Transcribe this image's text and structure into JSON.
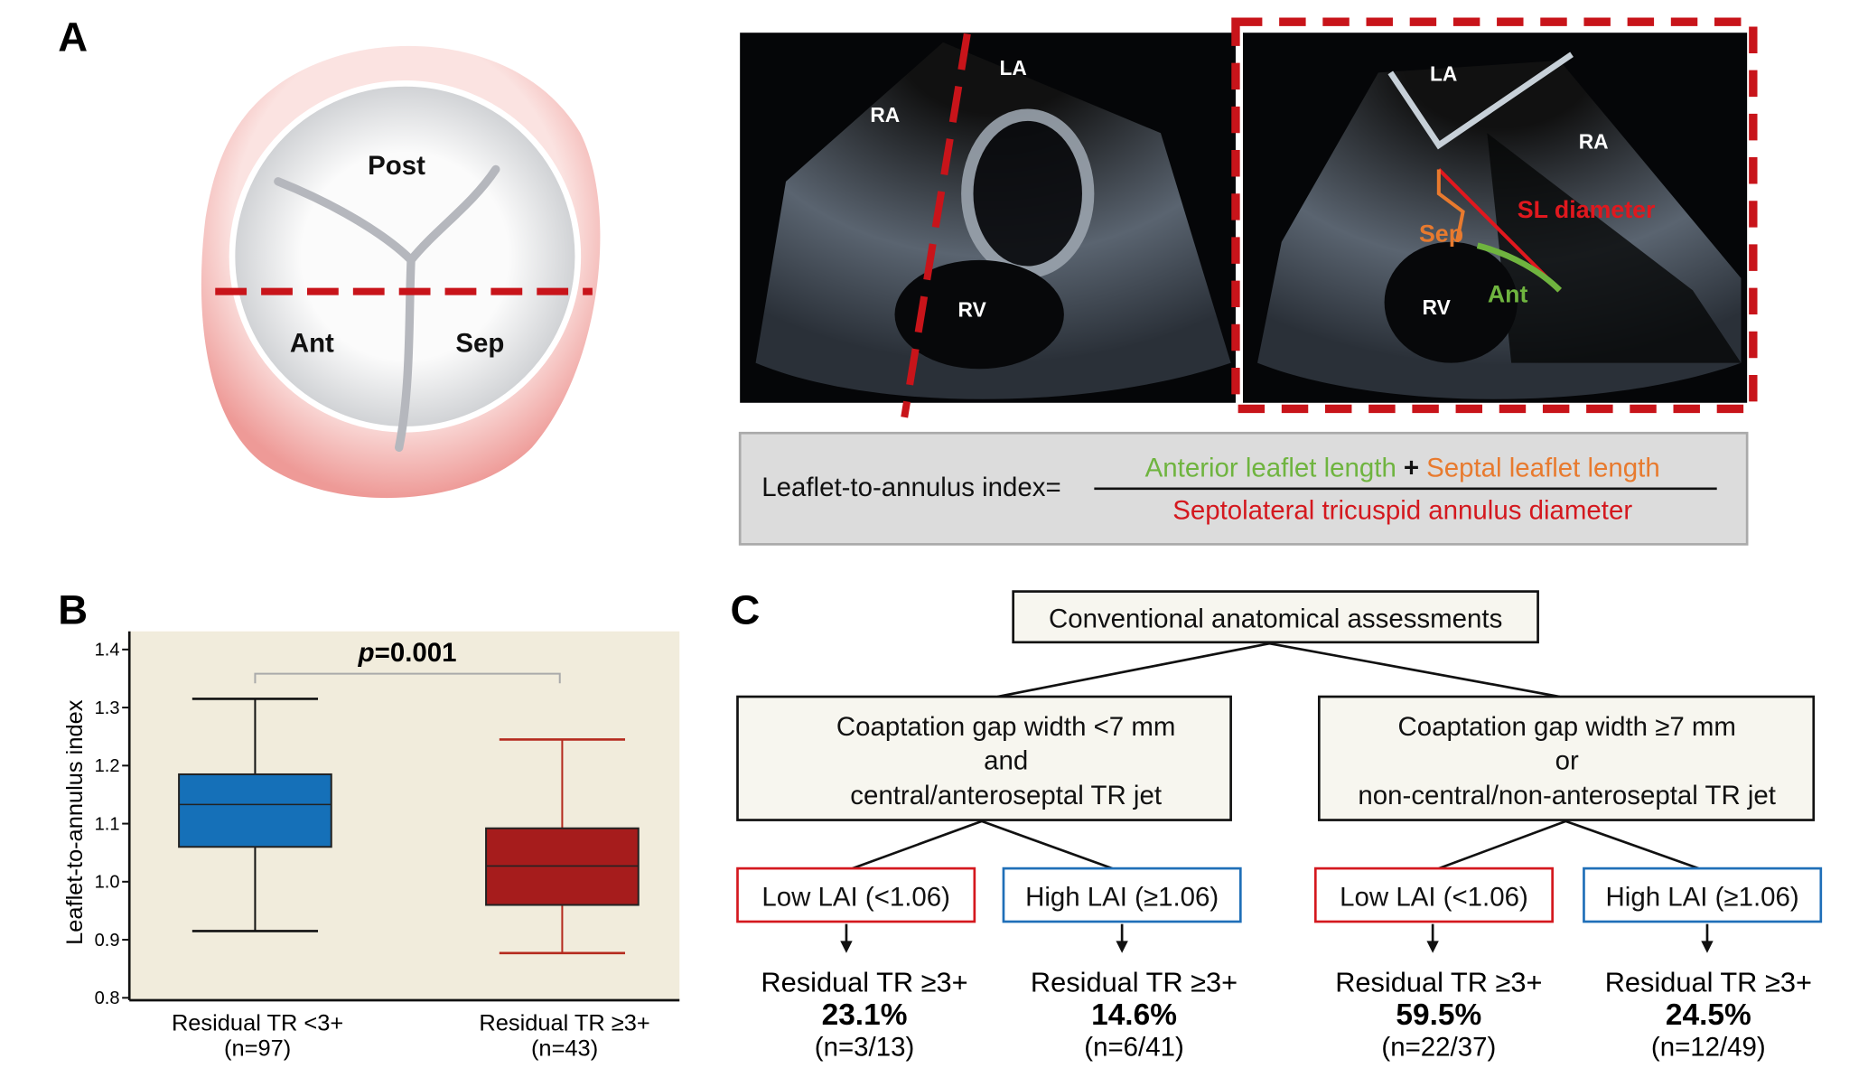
{
  "panel_labels": {
    "a": "A",
    "b": "B",
    "c": "C"
  },
  "valve": {
    "post": "Post",
    "ant": "Ant",
    "sep": "Sep"
  },
  "echo": {
    "left": {
      "la": "LA",
      "ra": "RA",
      "rv": "RV"
    },
    "right": {
      "la": "LA",
      "ra": "RA",
      "rv": "RV",
      "sl": "SL diameter",
      "sep": "Sep",
      "ant": "Ant"
    }
  },
  "formula": {
    "lhs": "Leaflet-to-annulus index=",
    "num_a": "Anterior leaflet length",
    "plus": "+",
    "num_b": "Septal leaflet length",
    "den": "Septolateral tricuspid annulus diameter"
  },
  "colors": {
    "green": "#6fb43f",
    "orange": "#e87a2e",
    "red": "#d4181e",
    "blue": "#1f6fb8",
    "box_blue": "#1570b8",
    "box_red": "#a61c1c",
    "plot_bg": "#f1ecdc"
  },
  "chart_data": {
    "type": "box",
    "ylabel": "Leaflet-to-annulus index",
    "ylim": [
      0.8,
      1.4
    ],
    "yticks": [
      "0.8",
      "0.9",
      "1.0",
      "1.1",
      "1.2",
      "1.3",
      "1.4"
    ],
    "annotation": {
      "p_italic": "p",
      "p_value": "=0.001"
    },
    "groups": [
      {
        "name": "Residual TR <3+",
        "n": "(n=97)",
        "min": 0.915,
        "q1": 1.06,
        "median": 1.133,
        "q3": 1.185,
        "max": 1.315
      },
      {
        "name": "Residual TR ≥3+",
        "n": "(n=43)",
        "min": 0.877,
        "q1": 0.96,
        "median": 1.027,
        "q3": 1.092,
        "max": 1.245
      }
    ]
  },
  "flow": {
    "top": "Conventional anatomical assessments",
    "left": {
      "l1": "Coaptation gap width <7 mm",
      "l2": "and",
      "l3": "central/anteroseptal TR jet"
    },
    "right": {
      "l1": "Coaptation gap width ≥7 mm",
      "l2": "or",
      "l3": "non-central/non-anteroseptal TR jet"
    },
    "leaves": [
      {
        "label": "Low LAI (<1.06)",
        "outcome": "Residual TR ≥3+",
        "pct": "23.1%",
        "n": "(n=3/13)"
      },
      {
        "label": "High LAI (≥1.06)",
        "outcome": "Residual TR ≥3+",
        "pct": "14.6%",
        "n": "(n=6/41)"
      },
      {
        "label": "Low LAI (<1.06)",
        "outcome": "Residual TR ≥3+",
        "pct": "59.5%",
        "n": "(n=22/37)"
      },
      {
        "label": "High LAI (≥1.06)",
        "outcome": "Residual TR ≥3+",
        "pct": "24.5%",
        "n": "(n=12/49)"
      }
    ]
  }
}
